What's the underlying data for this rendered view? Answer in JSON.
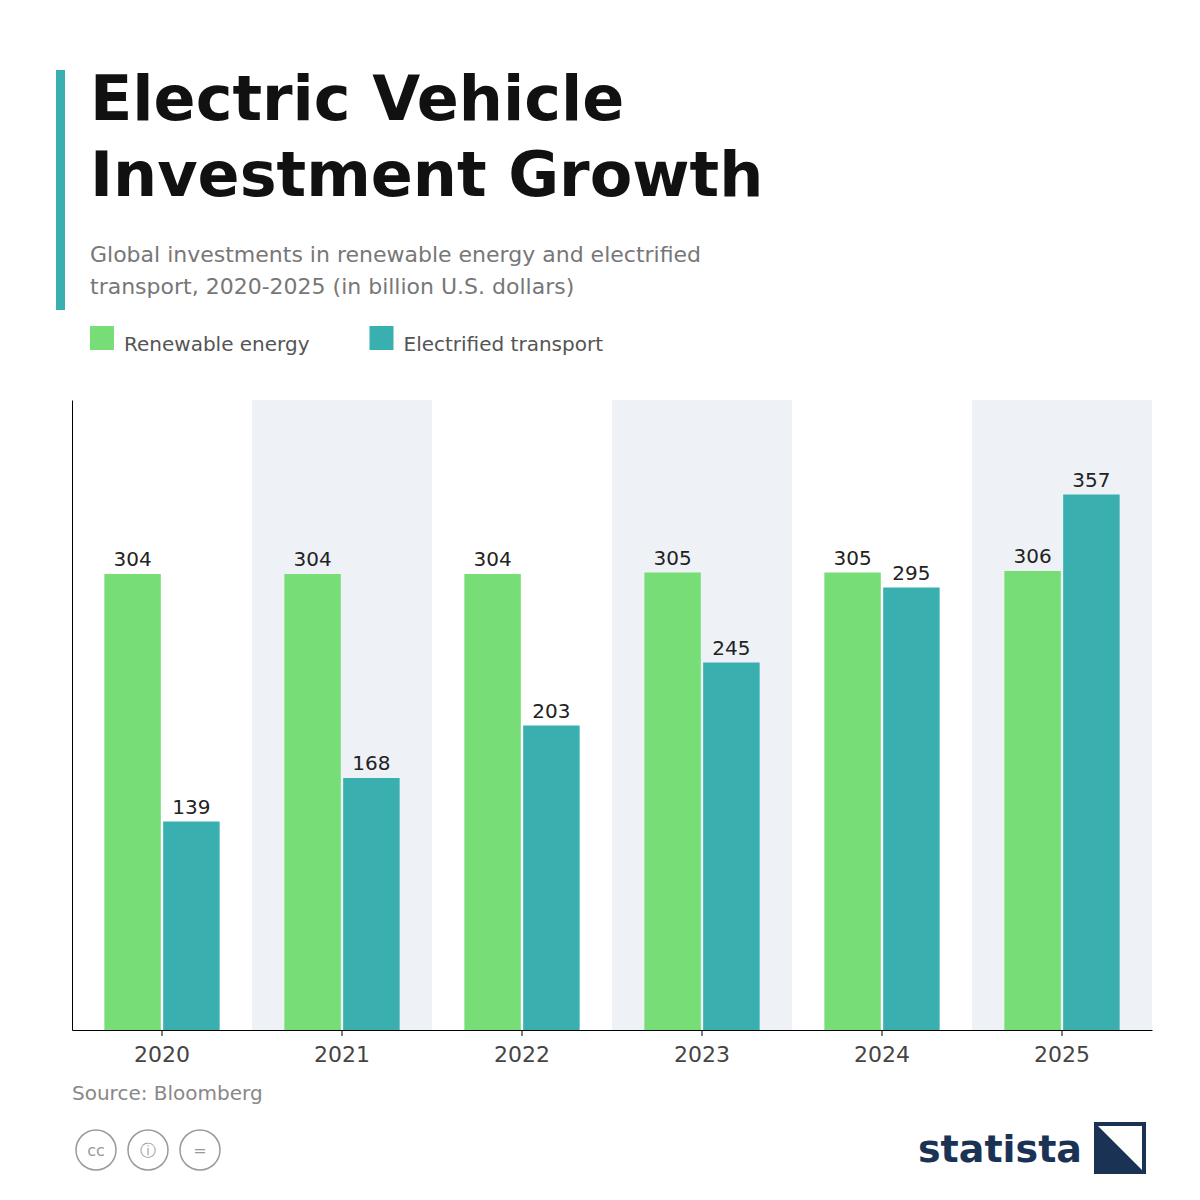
{
  "chart_data": {
    "type": "bar",
    "title": "Electric Vehicle\nInvestment Growth",
    "subtitle": "Global investments in renewable energy and electrified\ntransport, 2020-2025 (in billion U.S. dollars)",
    "categories": [
      "2020",
      "2021",
      "2022",
      "2023",
      "2024",
      "2025"
    ],
    "series": [
      {
        "name": "Renewable energy",
        "color": "#77DD77",
        "values": [
          304,
          304,
          304,
          305,
          305,
          306
        ]
      },
      {
        "name": "Electrified transport",
        "color": "#3AAFAF",
        "values": [
          139,
          168,
          203,
          245,
          295,
          357
        ]
      }
    ],
    "ylim": [
      0,
      420
    ],
    "grid": false,
    "legend": "top-left",
    "data_labels": true,
    "tick_labels": "x",
    "annotations": [
      "Source: Bloomberg",
      "statista",
      "cc",
      "ⓘ",
      "="
    ]
  }
}
